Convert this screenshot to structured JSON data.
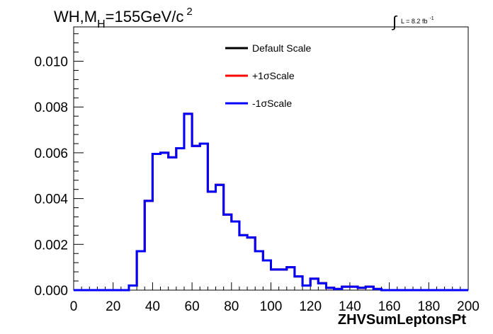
{
  "header": {
    "title_main": "WH,M",
    "title_sub": "H",
    "title_rest": "=155GeV/c",
    "title_sup": "2",
    "lumi_integral": "∫",
    "lumi_text": "L = 8.2 fb",
    "lumi_sup": "-1"
  },
  "chart_data": {
    "type": "line",
    "style": "step-histogram",
    "title": "WH,M_H=155GeV/c^2",
    "xlabel": "ZHVSumLeptonsPt",
    "ylabel": "",
    "xlim": [
      0,
      200
    ],
    "ylim": [
      0,
      0.0115
    ],
    "x_ticks": [
      0,
      20,
      40,
      60,
      80,
      100,
      120,
      140,
      160,
      180,
      200
    ],
    "x_tick_labels": [
      "0",
      "20",
      "40",
      "60",
      "80",
      "100",
      "120",
      "140",
      "160",
      "180",
      "200"
    ],
    "y_ticks": [
      0,
      0.002,
      0.004,
      0.006,
      0.008,
      0.01
    ],
    "y_tick_labels": [
      "0.000",
      "0.002",
      "0.004",
      "0.006",
      "0.008",
      "0.010"
    ],
    "grid": false,
    "legend_position": "top-center",
    "bin_edges": [
      0,
      4,
      8,
      12,
      16,
      20,
      24,
      28,
      32,
      36,
      40,
      44,
      48,
      52,
      56,
      60,
      64,
      68,
      72,
      76,
      80,
      84,
      88,
      92,
      96,
      100,
      104,
      108,
      112,
      116,
      120,
      124,
      128,
      132,
      136,
      140,
      144,
      148,
      152,
      156,
      160,
      164,
      168,
      172,
      176,
      180,
      184,
      188,
      192,
      196,
      200
    ],
    "series": [
      {
        "name": "Default Scale",
        "color": "#000000",
        "values": [
          0,
          0,
          0,
          0,
          0,
          0,
          0,
          0.0002,
          0.0017,
          0.0039,
          0.00595,
          0.006,
          0.0058,
          0.0062,
          0.0077,
          0.0063,
          0.0064,
          0.0043,
          0.0046,
          0.0033,
          0.003,
          0.0024,
          0.0023,
          0.0017,
          0.0013,
          0.0009,
          0.0009,
          0.001,
          0.0006,
          0.0002,
          0.0005,
          0.0003,
          0.0001,
          5e-05,
          0.00015,
          0.00015,
          0.0001,
          0.00015,
          5e-05,
          0,
          0,
          0,
          0,
          0,
          0,
          0,
          0,
          0,
          0,
          0
        ]
      },
      {
        "name": "+1σScale",
        "color": "#ff0000",
        "values": [
          0,
          0,
          0,
          0,
          0,
          0,
          0,
          0.0002,
          0.0017,
          0.0039,
          0.00595,
          0.006,
          0.0058,
          0.0062,
          0.0077,
          0.0063,
          0.0064,
          0.0043,
          0.0046,
          0.0033,
          0.003,
          0.0024,
          0.0023,
          0.0017,
          0.0013,
          0.0009,
          0.0009,
          0.001,
          0.0006,
          0.0002,
          0.0005,
          0.0003,
          0.0001,
          5e-05,
          0.00015,
          0.00015,
          0.0001,
          0.00015,
          5e-05,
          0,
          0,
          0,
          0,
          0,
          0,
          0,
          0,
          0,
          0,
          0
        ]
      },
      {
        "name": "-1σScale",
        "color": "#0000ff",
        "values": [
          0,
          0,
          0,
          0,
          0,
          0,
          0,
          0.0002,
          0.0017,
          0.0039,
          0.00595,
          0.006,
          0.0058,
          0.0062,
          0.0077,
          0.0063,
          0.0064,
          0.0043,
          0.0046,
          0.0033,
          0.003,
          0.0024,
          0.0023,
          0.0017,
          0.0013,
          0.0009,
          0.0009,
          0.001,
          0.0006,
          0.0002,
          0.0005,
          0.0003,
          0.0001,
          5e-05,
          0.00015,
          0.00015,
          0.0001,
          0.00015,
          5e-05,
          0,
          0,
          0,
          0,
          0,
          0,
          0,
          0,
          0,
          0,
          0
        ]
      }
    ]
  }
}
